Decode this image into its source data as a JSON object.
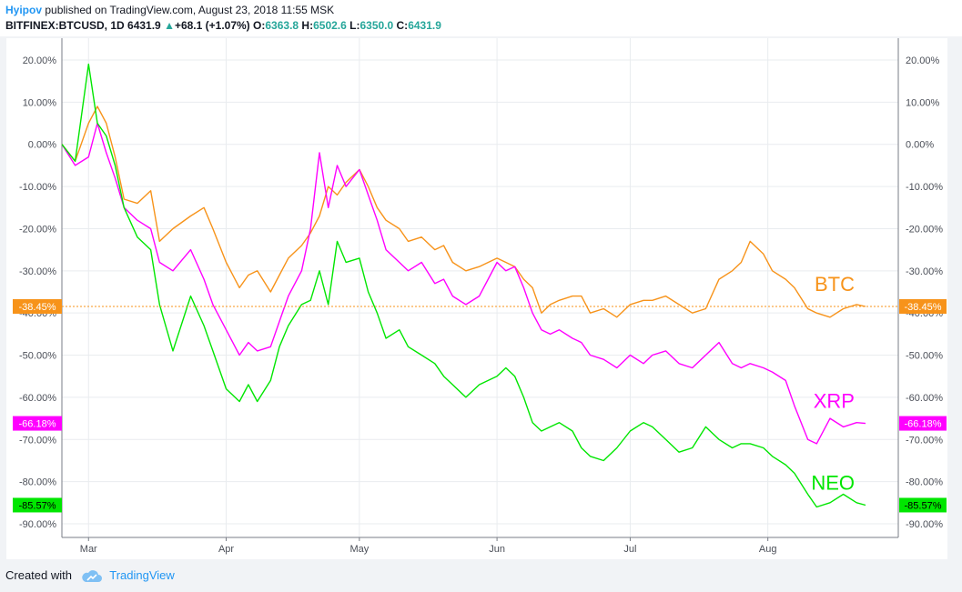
{
  "header": {
    "author": "Hyipov",
    "published": "published on TradingView.com, August 23, 2018 11:55 MSK",
    "symbol": "BITFINEX:BTCUSD, 1D",
    "last": "6431.9",
    "change_arrow": "▲",
    "change": "+68.1 (+1.07%)",
    "o_label": "O:",
    "o_value": "6363.8",
    "h_label": "H:",
    "h_value": "6502.6",
    "l_label": "L:",
    "l_value": "6350.0",
    "c_label": "C:",
    "c_value": "6431.9"
  },
  "footer": {
    "created_with": "Created with",
    "brand": "TradingView"
  },
  "colors": {
    "btc": "#f7931a",
    "xrp": "#ff00ff",
    "neo": "#00e600",
    "grid": "#e9ecef",
    "axis": "#7a7e87"
  },
  "chart_data": {
    "type": "line",
    "x_start": "2018-02-23",
    "x_end": "2018-08-23",
    "y_unit": "%",
    "ylim": [
      -92,
      23
    ],
    "grid": true,
    "y_ticks": [
      "20.00%",
      "10.00%",
      "0.00%",
      "-10.00%",
      "-20.00%",
      "-30.00%",
      "-40.00%",
      "-50.00%",
      "-60.00%",
      "-70.00%",
      "-80.00%",
      "-90.00%"
    ],
    "y_tick_values": [
      20,
      10,
      0,
      -10,
      -20,
      -30,
      -40,
      -50,
      -60,
      -70,
      -80,
      -90
    ],
    "x_ticks": [
      {
        "label": "Mar",
        "date": "2018-03-01"
      },
      {
        "label": "Apr",
        "date": "2018-04-01"
      },
      {
        "label": "May",
        "date": "2018-05-01"
      },
      {
        "label": "Jun",
        "date": "2018-06-01"
      },
      {
        "label": "Jul",
        "date": "2018-07-01"
      },
      {
        "label": "Aug",
        "date": "2018-08-01"
      }
    ],
    "series": [
      {
        "name": "BTC",
        "color": "#f7931a",
        "last_label": "-38.45%",
        "last_value": -38.45,
        "points": [
          [
            "2018-02-23",
            0
          ],
          [
            "2018-02-26",
            -4
          ],
          [
            "2018-03-01",
            5
          ],
          [
            "2018-03-03",
            9
          ],
          [
            "2018-03-05",
            5
          ],
          [
            "2018-03-07",
            -3
          ],
          [
            "2018-03-09",
            -13
          ],
          [
            "2018-03-12",
            -14
          ],
          [
            "2018-03-15",
            -11
          ],
          [
            "2018-03-17",
            -23
          ],
          [
            "2018-03-20",
            -20
          ],
          [
            "2018-03-24",
            -17
          ],
          [
            "2018-03-27",
            -15
          ],
          [
            "2018-03-29",
            -20
          ],
          [
            "2018-04-01",
            -28
          ],
          [
            "2018-04-04",
            -34
          ],
          [
            "2018-04-06",
            -31
          ],
          [
            "2018-04-08",
            -30
          ],
          [
            "2018-04-11",
            -35
          ],
          [
            "2018-04-13",
            -31
          ],
          [
            "2018-04-15",
            -27
          ],
          [
            "2018-04-18",
            -24
          ],
          [
            "2018-04-20",
            -21
          ],
          [
            "2018-04-22",
            -17
          ],
          [
            "2018-04-24",
            -10
          ],
          [
            "2018-04-26",
            -12
          ],
          [
            "2018-04-28",
            -9
          ],
          [
            "2018-05-01",
            -6
          ],
          [
            "2018-05-03",
            -10
          ],
          [
            "2018-05-05",
            -15
          ],
          [
            "2018-05-07",
            -18
          ],
          [
            "2018-05-10",
            -20
          ],
          [
            "2018-05-12",
            -23
          ],
          [
            "2018-05-15",
            -22
          ],
          [
            "2018-05-18",
            -25
          ],
          [
            "2018-05-20",
            -24
          ],
          [
            "2018-05-22",
            -28
          ],
          [
            "2018-05-25",
            -30
          ],
          [
            "2018-05-28",
            -29
          ],
          [
            "2018-06-01",
            -27
          ],
          [
            "2018-06-03",
            -28
          ],
          [
            "2018-06-05",
            -29
          ],
          [
            "2018-06-07",
            -32
          ],
          [
            "2018-06-09",
            -34
          ],
          [
            "2018-06-11",
            -40
          ],
          [
            "2018-06-13",
            -38
          ],
          [
            "2018-06-15",
            -37
          ],
          [
            "2018-06-18",
            -36
          ],
          [
            "2018-06-20",
            -36
          ],
          [
            "2018-06-22",
            -40
          ],
          [
            "2018-06-25",
            -39
          ],
          [
            "2018-06-28",
            -41
          ],
          [
            "2018-07-01",
            -38
          ],
          [
            "2018-07-04",
            -37
          ],
          [
            "2018-07-06",
            -37
          ],
          [
            "2018-07-09",
            -36
          ],
          [
            "2018-07-12",
            -38
          ],
          [
            "2018-07-15",
            -40
          ],
          [
            "2018-07-18",
            -39
          ],
          [
            "2018-07-21",
            -32
          ],
          [
            "2018-07-24",
            -30
          ],
          [
            "2018-07-26",
            -28
          ],
          [
            "2018-07-28",
            -23
          ],
          [
            "2018-07-31",
            -26
          ],
          [
            "2018-08-02",
            -30
          ],
          [
            "2018-08-05",
            -32
          ],
          [
            "2018-08-07",
            -34
          ],
          [
            "2018-08-10",
            -39
          ],
          [
            "2018-08-12",
            -40
          ],
          [
            "2018-08-15",
            -41
          ],
          [
            "2018-08-18",
            -39
          ],
          [
            "2018-08-21",
            -38
          ],
          [
            "2018-08-23",
            -38.45
          ]
        ]
      },
      {
        "name": "XRP",
        "color": "#ff00ff",
        "last_label": "-66.18%",
        "last_value": -66.18,
        "points": [
          [
            "2018-02-23",
            0
          ],
          [
            "2018-02-26",
            -5
          ],
          [
            "2018-03-01",
            -3
          ],
          [
            "2018-03-03",
            5
          ],
          [
            "2018-03-05",
            -2
          ],
          [
            "2018-03-07",
            -8
          ],
          [
            "2018-03-09",
            -15
          ],
          [
            "2018-03-12",
            -18
          ],
          [
            "2018-03-15",
            -20
          ],
          [
            "2018-03-17",
            -28
          ],
          [
            "2018-03-20",
            -30
          ],
          [
            "2018-03-24",
            -25
          ],
          [
            "2018-03-27",
            -32
          ],
          [
            "2018-03-29",
            -38
          ],
          [
            "2018-04-01",
            -44
          ],
          [
            "2018-04-04",
            -50
          ],
          [
            "2018-04-06",
            -47
          ],
          [
            "2018-04-08",
            -49
          ],
          [
            "2018-04-11",
            -48
          ],
          [
            "2018-04-13",
            -42
          ],
          [
            "2018-04-15",
            -36
          ],
          [
            "2018-04-18",
            -30
          ],
          [
            "2018-04-20",
            -20
          ],
          [
            "2018-04-22",
            -2
          ],
          [
            "2018-04-24",
            -15
          ],
          [
            "2018-04-26",
            -5
          ],
          [
            "2018-04-28",
            -10
          ],
          [
            "2018-05-01",
            -6
          ],
          [
            "2018-05-03",
            -12
          ],
          [
            "2018-05-05",
            -18
          ],
          [
            "2018-05-07",
            -25
          ],
          [
            "2018-05-10",
            -28
          ],
          [
            "2018-05-12",
            -30
          ],
          [
            "2018-05-15",
            -28
          ],
          [
            "2018-05-18",
            -33
          ],
          [
            "2018-05-20",
            -32
          ],
          [
            "2018-05-22",
            -36
          ],
          [
            "2018-05-25",
            -38
          ],
          [
            "2018-05-28",
            -36
          ],
          [
            "2018-06-01",
            -28
          ],
          [
            "2018-06-03",
            -30
          ],
          [
            "2018-06-05",
            -29
          ],
          [
            "2018-06-07",
            -34
          ],
          [
            "2018-06-09",
            -40
          ],
          [
            "2018-06-11",
            -44
          ],
          [
            "2018-06-13",
            -45
          ],
          [
            "2018-06-15",
            -44
          ],
          [
            "2018-06-18",
            -46
          ],
          [
            "2018-06-20",
            -47
          ],
          [
            "2018-06-22",
            -50
          ],
          [
            "2018-06-25",
            -51
          ],
          [
            "2018-06-28",
            -53
          ],
          [
            "2018-07-01",
            -50
          ],
          [
            "2018-07-04",
            -52
          ],
          [
            "2018-07-06",
            -50
          ],
          [
            "2018-07-09",
            -49
          ],
          [
            "2018-07-12",
            -52
          ],
          [
            "2018-07-15",
            -53
          ],
          [
            "2018-07-18",
            -50
          ],
          [
            "2018-07-21",
            -47
          ],
          [
            "2018-07-24",
            -52
          ],
          [
            "2018-07-26",
            -53
          ],
          [
            "2018-07-28",
            -52
          ],
          [
            "2018-07-31",
            -53
          ],
          [
            "2018-08-02",
            -54
          ],
          [
            "2018-08-05",
            -56
          ],
          [
            "2018-08-07",
            -62
          ],
          [
            "2018-08-10",
            -70
          ],
          [
            "2018-08-12",
            -71
          ],
          [
            "2018-08-15",
            -65
          ],
          [
            "2018-08-18",
            -67
          ],
          [
            "2018-08-21",
            -66
          ],
          [
            "2018-08-23",
            -66.18
          ]
        ]
      },
      {
        "name": "NEO",
        "color": "#00e600",
        "last_label": "-85.57%",
        "last_value": -85.57,
        "points": [
          [
            "2018-02-23",
            0
          ],
          [
            "2018-02-26",
            -4
          ],
          [
            "2018-03-01",
            19
          ],
          [
            "2018-03-03",
            5
          ],
          [
            "2018-03-05",
            2
          ],
          [
            "2018-03-07",
            -5
          ],
          [
            "2018-03-09",
            -15
          ],
          [
            "2018-03-12",
            -22
          ],
          [
            "2018-03-15",
            -25
          ],
          [
            "2018-03-17",
            -38
          ],
          [
            "2018-03-20",
            -49
          ],
          [
            "2018-03-24",
            -36
          ],
          [
            "2018-03-27",
            -43
          ],
          [
            "2018-03-29",
            -49
          ],
          [
            "2018-04-01",
            -58
          ],
          [
            "2018-04-04",
            -61
          ],
          [
            "2018-04-06",
            -57
          ],
          [
            "2018-04-08",
            -61
          ],
          [
            "2018-04-11",
            -56
          ],
          [
            "2018-04-13",
            -48
          ],
          [
            "2018-04-15",
            -43
          ],
          [
            "2018-04-18",
            -38
          ],
          [
            "2018-04-20",
            -37
          ],
          [
            "2018-04-22",
            -30
          ],
          [
            "2018-04-24",
            -38
          ],
          [
            "2018-04-26",
            -23
          ],
          [
            "2018-04-28",
            -28
          ],
          [
            "2018-05-01",
            -27
          ],
          [
            "2018-05-03",
            -35
          ],
          [
            "2018-05-05",
            -40
          ],
          [
            "2018-05-07",
            -46
          ],
          [
            "2018-05-10",
            -44
          ],
          [
            "2018-05-12",
            -48
          ],
          [
            "2018-05-15",
            -50
          ],
          [
            "2018-05-18",
            -52
          ],
          [
            "2018-05-20",
            -55
          ],
          [
            "2018-05-22",
            -57
          ],
          [
            "2018-05-25",
            -60
          ],
          [
            "2018-05-28",
            -57
          ],
          [
            "2018-06-01",
            -55
          ],
          [
            "2018-06-03",
            -53
          ],
          [
            "2018-06-05",
            -55
          ],
          [
            "2018-06-07",
            -60
          ],
          [
            "2018-06-09",
            -66
          ],
          [
            "2018-06-11",
            -68
          ],
          [
            "2018-06-13",
            -67
          ],
          [
            "2018-06-15",
            -66
          ],
          [
            "2018-06-18",
            -68
          ],
          [
            "2018-06-20",
            -72
          ],
          [
            "2018-06-22",
            -74
          ],
          [
            "2018-06-25",
            -75
          ],
          [
            "2018-06-28",
            -72
          ],
          [
            "2018-07-01",
            -68
          ],
          [
            "2018-07-04",
            -66
          ],
          [
            "2018-07-06",
            -67
          ],
          [
            "2018-07-09",
            -70
          ],
          [
            "2018-07-12",
            -73
          ],
          [
            "2018-07-15",
            -72
          ],
          [
            "2018-07-18",
            -67
          ],
          [
            "2018-07-21",
            -70
          ],
          [
            "2018-07-24",
            -72
          ],
          [
            "2018-07-26",
            -71
          ],
          [
            "2018-07-28",
            -71
          ],
          [
            "2018-07-31",
            -72
          ],
          [
            "2018-08-02",
            -74
          ],
          [
            "2018-08-05",
            -76
          ],
          [
            "2018-08-07",
            -78
          ],
          [
            "2018-08-10",
            -83
          ],
          [
            "2018-08-12",
            -86
          ],
          [
            "2018-08-15",
            -85
          ],
          [
            "2018-08-18",
            -83
          ],
          [
            "2018-08-21",
            -85
          ],
          [
            "2018-08-23",
            -85.57
          ]
        ]
      }
    ]
  }
}
